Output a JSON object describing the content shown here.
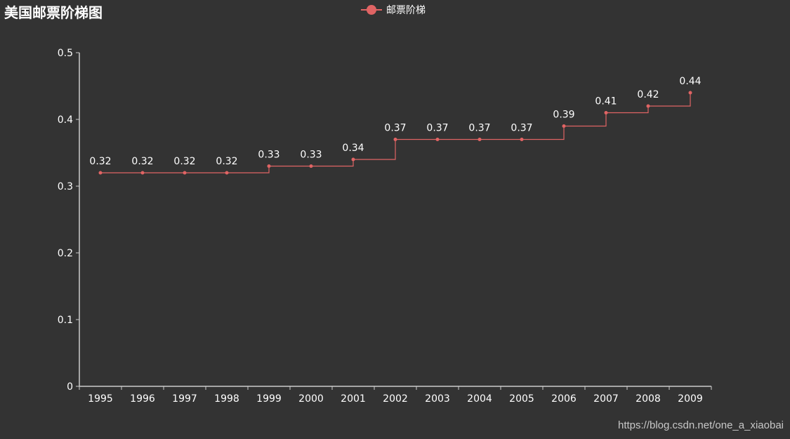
{
  "title": "美国邮票阶梯图",
  "watermark": "https://blog.csdn.net/one_a_xiaobai",
  "colors": {
    "background": "#333333",
    "series": "#e06464",
    "axis": "#cccccc",
    "text": "#ffffff"
  },
  "chart_data": {
    "type": "line",
    "step": true,
    "title": "美国邮票阶梯图",
    "xlabel": "",
    "ylabel": "",
    "categories": [
      "1995",
      "1996",
      "1997",
      "1998",
      "1999",
      "2000",
      "2001",
      "2002",
      "2003",
      "2004",
      "2005",
      "2006",
      "2007",
      "2008",
      "2009"
    ],
    "series": [
      {
        "name": "邮票阶梯",
        "values": [
          0.32,
          0.32,
          0.32,
          0.32,
          0.33,
          0.33,
          0.34,
          0.37,
          0.37,
          0.37,
          0.37,
          0.39,
          0.41,
          0.42,
          0.44
        ]
      }
    ],
    "ylim": [
      0,
      0.5
    ],
    "yticks": [
      "0",
      "0.1",
      "0.2",
      "0.3",
      "0.4",
      "0.5"
    ],
    "grid": false,
    "legend_position": "top-center",
    "data_labels": true
  }
}
